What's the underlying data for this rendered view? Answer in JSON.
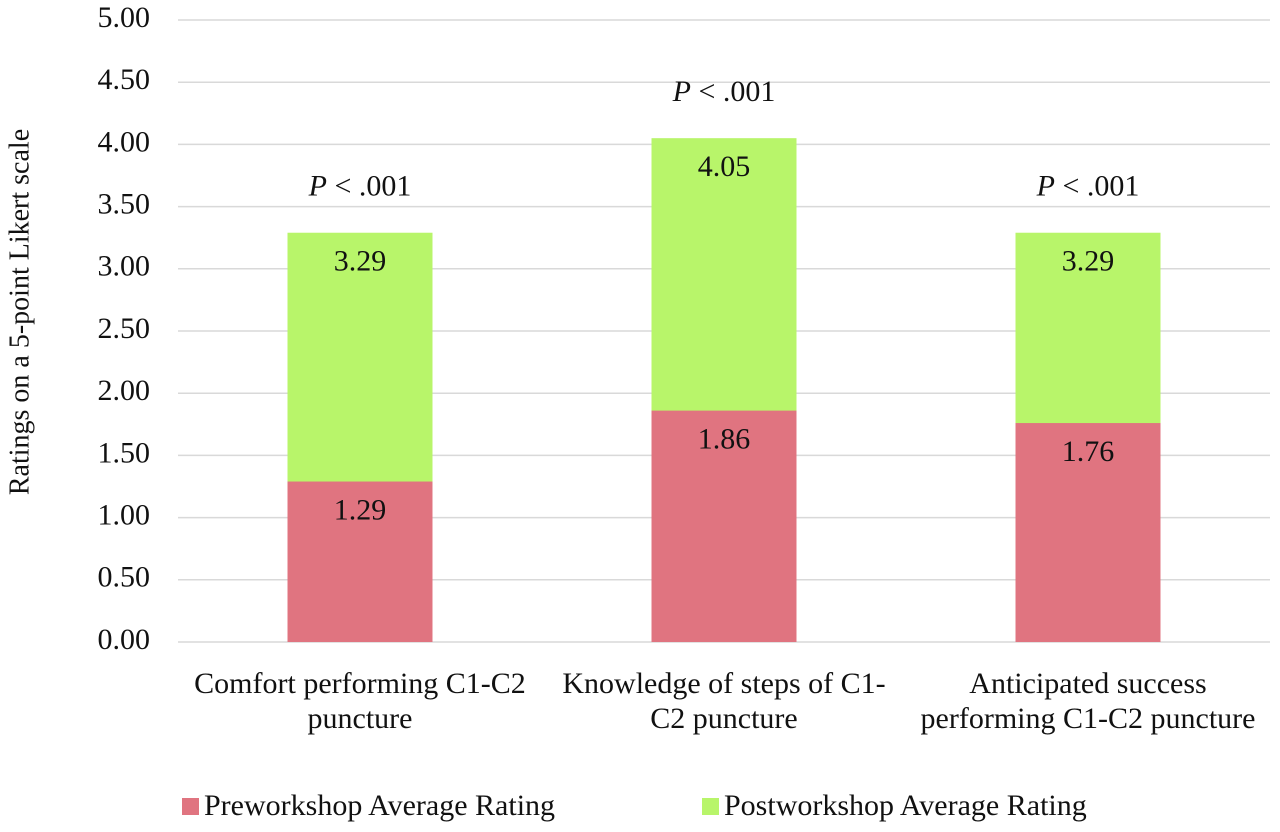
{
  "chart_data": {
    "type": "bar",
    "ylabel": "Ratings on a 5-point Likert scale",
    "categories": [
      "Comfort performing C1-C2 puncture",
      "Knowledge of steps of C1-C2 puncture",
      "Anticipated success performing C1-C2 puncture"
    ],
    "series": [
      {
        "name": "Preworkshop Average Rating",
        "color": "#e07480",
        "values": [
          1.29,
          1.86,
          1.76
        ]
      },
      {
        "name": "Postworkshop Average Rating",
        "color": "#b8f56a",
        "values": [
          3.29,
          4.05,
          3.29
        ]
      }
    ],
    "annotations": [
      "P < .001",
      "P < .001",
      "P < .001"
    ],
    "ylim": [
      0,
      5
    ],
    "yticks": [
      {
        "value": 0,
        "label": "0.00"
      },
      {
        "value": 0.5,
        "label": "0.50"
      },
      {
        "value": 1,
        "label": "1.00"
      },
      {
        "value": 1.5,
        "label": "1.50"
      },
      {
        "value": 2,
        "label": "2.00"
      },
      {
        "value": 2.5,
        "label": "2.50"
      },
      {
        "value": 3,
        "label": "3.00"
      },
      {
        "value": 3.5,
        "label": "3.50"
      },
      {
        "value": 4,
        "label": "4.00"
      },
      {
        "value": 4.5,
        "label": "4.50"
      },
      {
        "value": 5,
        "label": "5.00"
      }
    ],
    "grid": true,
    "legend": "bottom"
  }
}
